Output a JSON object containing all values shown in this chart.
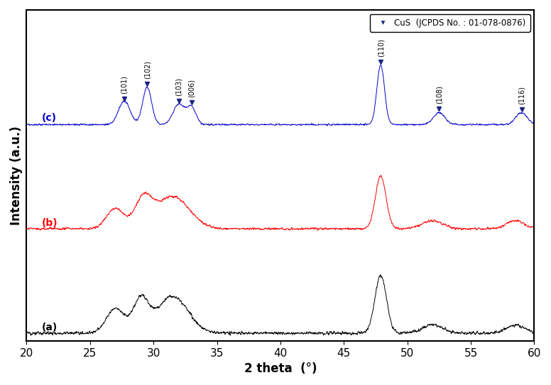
{
  "xlim": [
    20,
    60
  ],
  "xlabel": "2 theta  (°)",
  "ylabel": "Intensity (a.u.)",
  "line_colors": [
    "black",
    "red",
    "#0000cc"
  ],
  "labels": [
    "(a)",
    "(b)",
    "(c)"
  ],
  "offsets": [
    0.0,
    0.38,
    0.76
  ],
  "peak_positions": {
    "101": 27.7,
    "102": 29.5,
    "103": 32.0,
    "006": 33.0,
    "110": 47.9,
    "108": 52.5,
    "116": 59.0
  },
  "marker_color": "#1a237e",
  "background_color": "#ffffff",
  "tick_positions": [
    20,
    25,
    30,
    35,
    40,
    45,
    50,
    55,
    60
  ]
}
